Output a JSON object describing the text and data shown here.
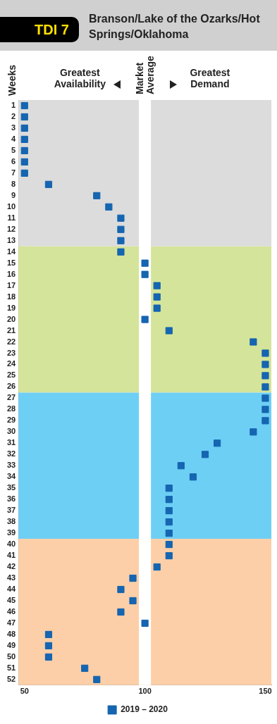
{
  "chart_data": {
    "type": "scatter",
    "title": "Branson/Lake of the Ozarks/Hot Springs/Oklahoma",
    "subtitle": "TDI 7",
    "ylabel": "Weeks",
    "annotations": [
      "Greatest Availability",
      "Market Average",
      "Greatest Demand"
    ],
    "series": [
      {
        "name": "2019 – 2020",
        "color": "#1565b0",
        "x": [
          50,
          50,
          50,
          50,
          50,
          50,
          50,
          60,
          80,
          85,
          90,
          90,
          90,
          90,
          100,
          100,
          105,
          105,
          105,
          100,
          110,
          145,
          150,
          150,
          150,
          150,
          150,
          150,
          150,
          145,
          130,
          125,
          115,
          120,
          110,
          110,
          110,
          110,
          110,
          110,
          110,
          105,
          95,
          90,
          95,
          90,
          100,
          60,
          60,
          60,
          75,
          80
        ],
        "values": [
          1,
          2,
          3,
          4,
          5,
          6,
          7,
          8,
          9,
          10,
          11,
          12,
          13,
          14,
          15,
          16,
          17,
          18,
          19,
          20,
          21,
          22,
          23,
          24,
          25,
          26,
          27,
          28,
          29,
          30,
          31,
          32,
          33,
          34,
          35,
          36,
          37,
          38,
          39,
          40,
          41,
          42,
          43,
          44,
          45,
          46,
          47,
          48,
          49,
          50,
          51,
          52
        ]
      }
    ],
    "xlim": [
      47.5,
      152.5
    ],
    "xticks": [
      50,
      100,
      150
    ],
    "ylim": [
      52.5,
      0.5
    ],
    "yticks": [
      1,
      2,
      3,
      4,
      5,
      6,
      7,
      8,
      9,
      10,
      11,
      12,
      13,
      14,
      15,
      16,
      17,
      18,
      19,
      20,
      21,
      22,
      23,
      24,
      25,
      26,
      27,
      28,
      29,
      30,
      31,
      32,
      33,
      34,
      35,
      36,
      37,
      38,
      39,
      40,
      41,
      42,
      43,
      44,
      45,
      46,
      47,
      48,
      49,
      50,
      51,
      52
    ],
    "bands": [
      {
        "axis": "y",
        "from": 0.5,
        "to": 13.5,
        "color": "#dcdcdc"
      },
      {
        "axis": "y",
        "from": 13.5,
        "to": 26.5,
        "color": "#d4e49a"
      },
      {
        "axis": "y",
        "from": 26.5,
        "to": 39.5,
        "color": "#6ecff5"
      },
      {
        "axis": "y",
        "from": 39.5,
        "to": 52.5,
        "color": "#fccfa8"
      }
    ],
    "ref_lines": [
      {
        "axis": "x",
        "value": 100,
        "color": "#ffffff"
      }
    ],
    "marker": "square",
    "legend": "bottom",
    "grid": false
  }
}
